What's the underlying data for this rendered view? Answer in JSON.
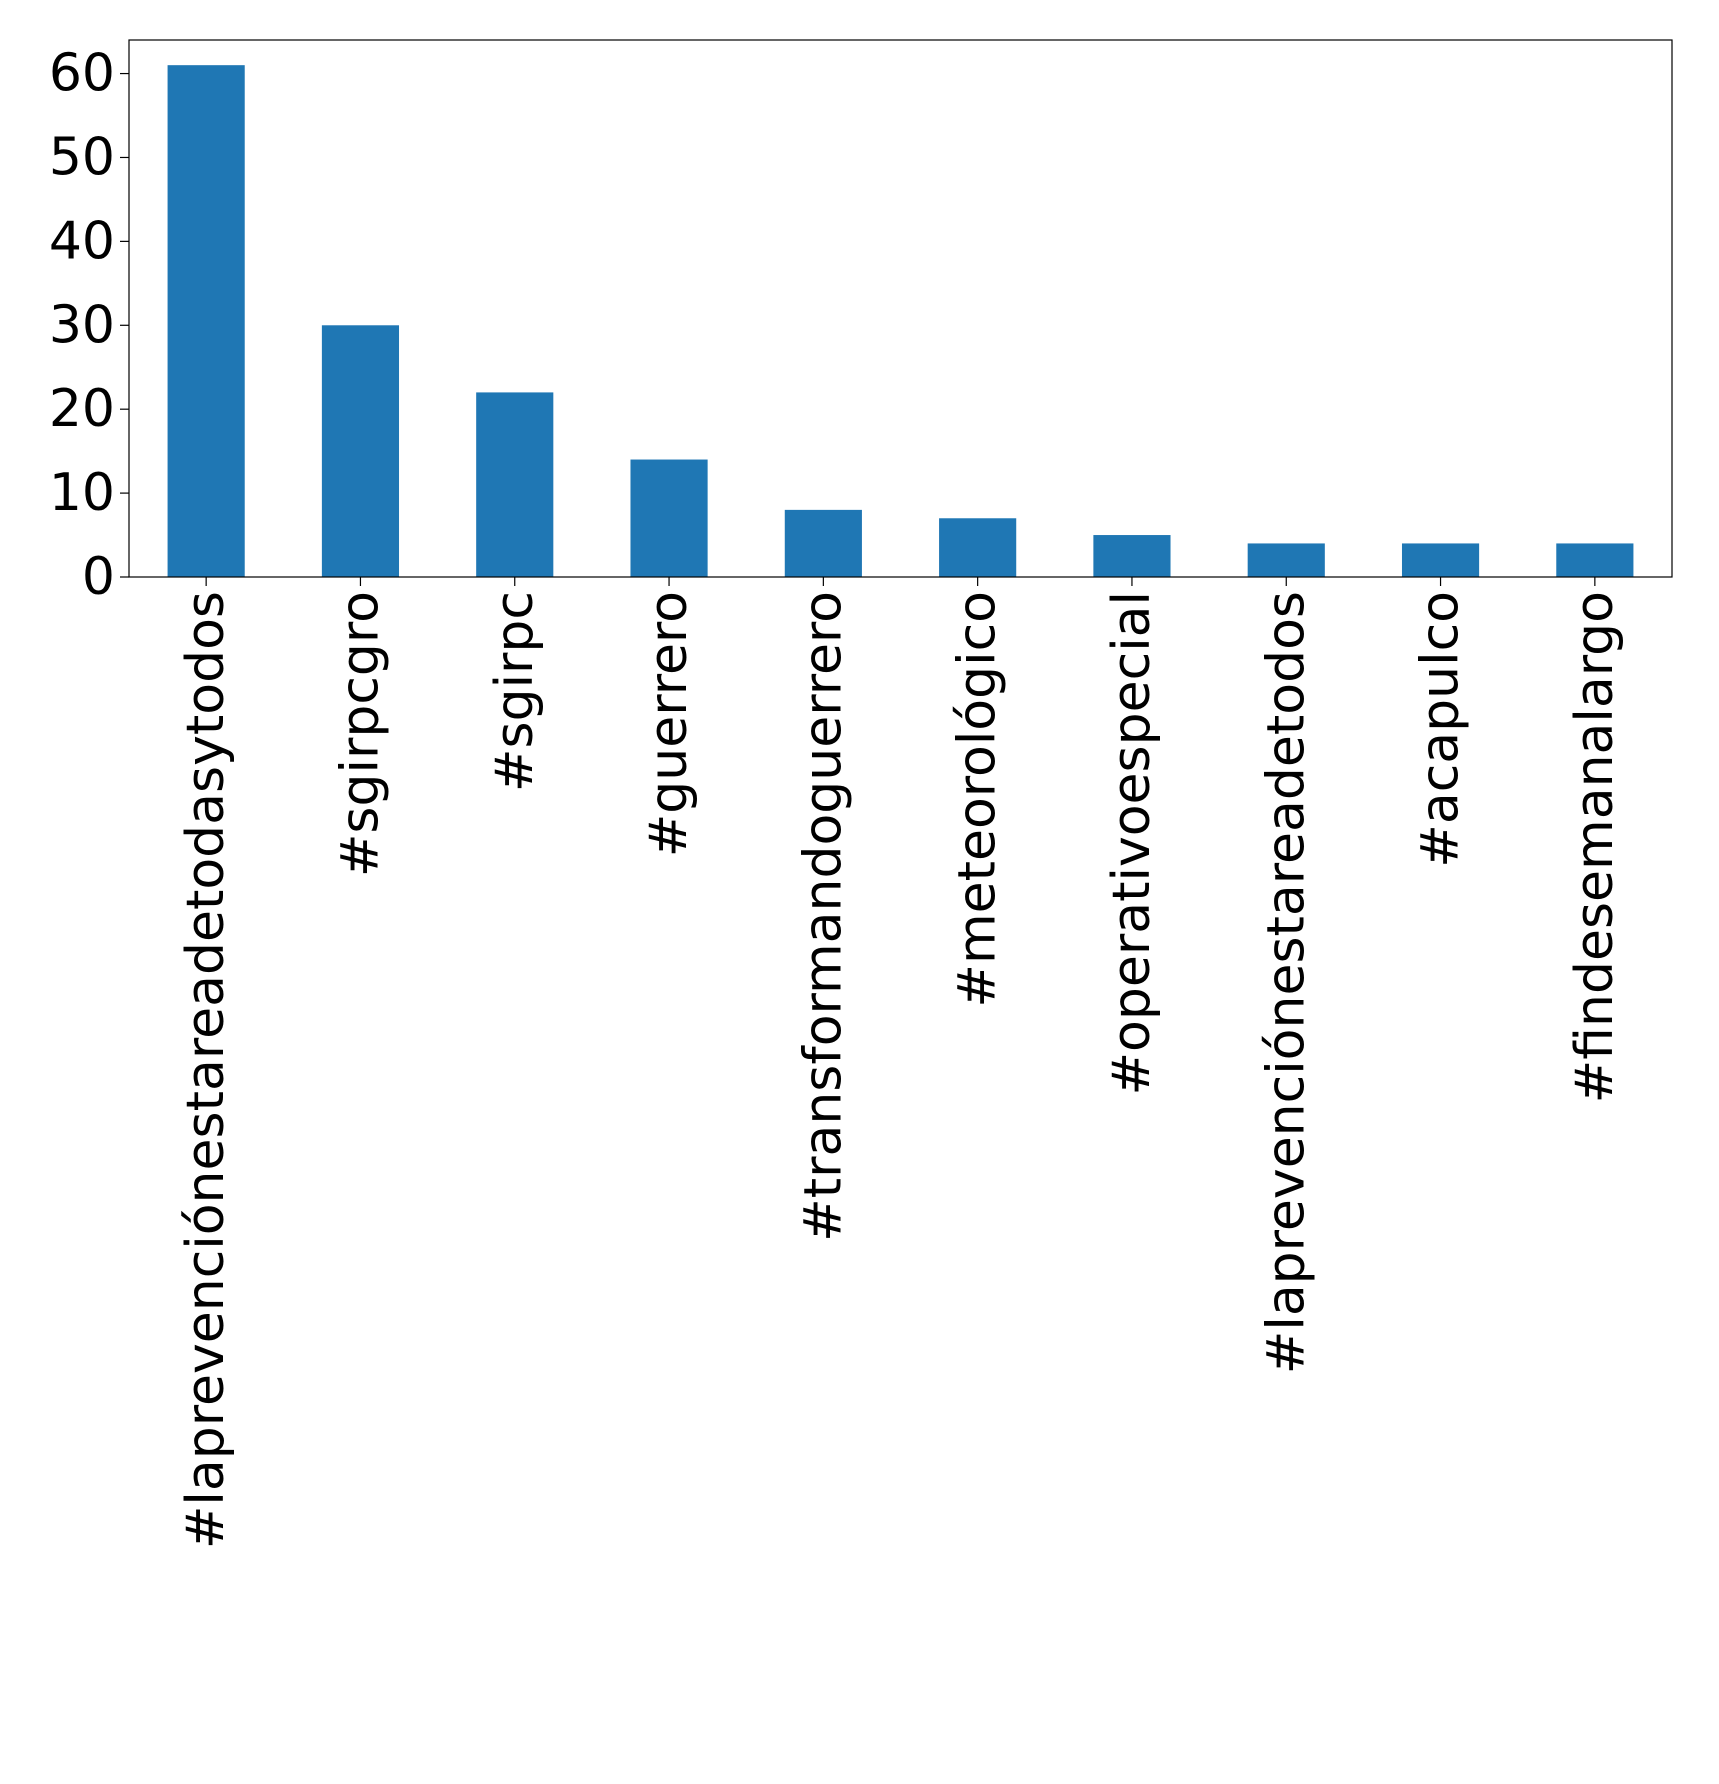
{
  "chart_data": {
    "type": "bar",
    "title": "",
    "xlabel": "",
    "ylabel": "",
    "categories": [
      "#laprevenciónestareadetodasytodos",
      "#sgirpcgro",
      "#sgirpc",
      "#guerrero",
      "#transformandoguerrero",
      "#meteorológico",
      "#operativoespecial",
      "#laprevenciónestareadetodos",
      "#acapulco",
      "#findesemanalargo"
    ],
    "values": [
      61,
      30,
      22,
      14,
      8,
      7,
      5,
      4,
      4,
      4
    ],
    "ylim": [
      0,
      64
    ],
    "yticks": [
      0,
      10,
      20,
      30,
      40,
      50,
      60
    ],
    "grid": false,
    "legend": "none",
    "colors": {
      "bar": "#1f77b4",
      "axis": "#000000",
      "background": "#ffffff"
    }
  }
}
